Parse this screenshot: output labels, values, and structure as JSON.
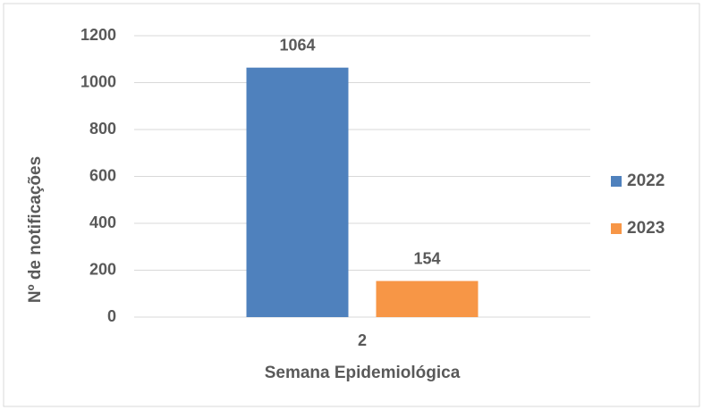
{
  "chart_data": {
    "type": "bar",
    "x_label": "Semana Epidemiológica",
    "y_label": "Nº de notificações",
    "categories": [
      "2"
    ],
    "series": [
      {
        "name": "2022",
        "color": "#4f81bd",
        "values": [
          1064
        ]
      },
      {
        "name": "2023",
        "color": "#f79646",
        "values": [
          154
        ]
      }
    ],
    "ylim": [
      0,
      1200
    ],
    "yticks": [
      0,
      200,
      400,
      600,
      800,
      1000,
      1200
    ],
    "grid": true,
    "legend": "right"
  }
}
